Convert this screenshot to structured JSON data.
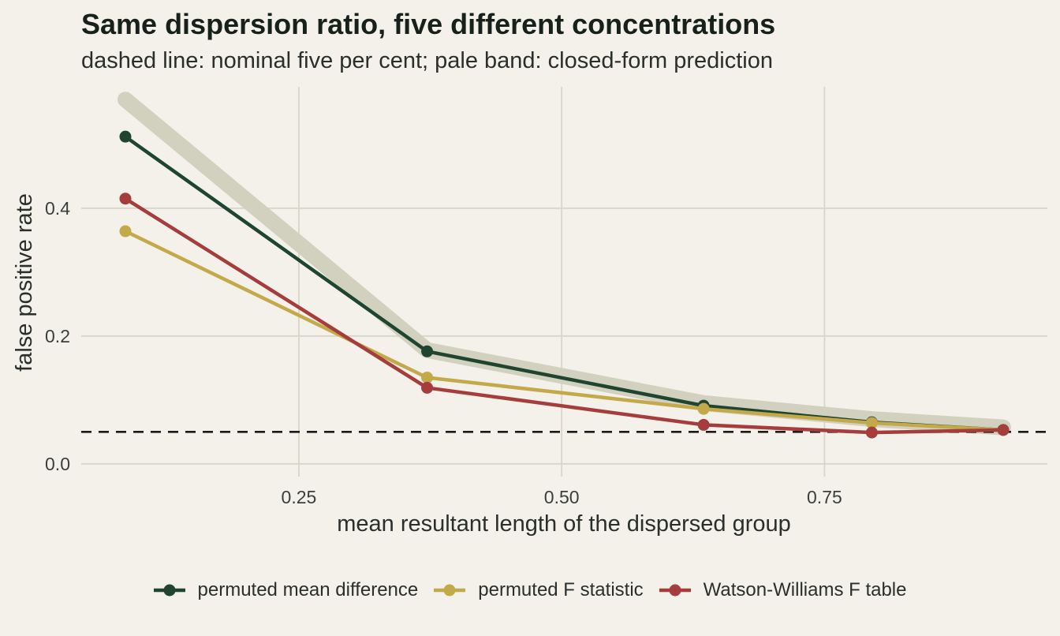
{
  "chart_data": {
    "type": "line",
    "title": "Same dispersion ratio, five different concentrations",
    "subtitle": "dashed line: nominal five per cent; pale band: closed-form prediction",
    "xlabel": "mean resultant length of the dispersed group",
    "ylabel": "false positive rate",
    "xlim": [
      0.043,
      0.962
    ],
    "ylim": [
      -0.02,
      0.59
    ],
    "x_ticks": [
      {
        "value": 0.25,
        "label": "0.25"
      },
      {
        "value": 0.5,
        "label": "0.50"
      },
      {
        "value": 0.75,
        "label": "0.75"
      }
    ],
    "y_ticks": [
      {
        "value": 0.0,
        "label": "0.0"
      },
      {
        "value": 0.2,
        "label": "0.2"
      },
      {
        "value": 0.4,
        "label": "0.4"
      }
    ],
    "grid": true,
    "legend_position": "bottom",
    "reference_line": {
      "y": 0.05,
      "style": "dashed",
      "color": "#1a1a1a"
    },
    "prediction_band": {
      "x": [
        0.085,
        0.372,
        0.635,
        0.795,
        0.92
      ],
      "y": [
        0.57,
        0.178,
        0.095,
        0.07,
        0.057
      ],
      "color": "#d2d1bf"
    },
    "series": [
      {
        "name": "permuted mean difference",
        "color": "#1f4530",
        "x": [
          0.085,
          0.372,
          0.635,
          0.795,
          0.92
        ],
        "y": [
          0.512,
          0.176,
          0.091,
          0.065,
          0.053
        ]
      },
      {
        "name": "permuted F statistic",
        "color": "#c4a94a",
        "x": [
          0.085,
          0.372,
          0.635,
          0.795,
          0.92
        ],
        "y": [
          0.364,
          0.135,
          0.086,
          0.064,
          0.053
        ]
      },
      {
        "name": "Watson-Williams F table",
        "color": "#a63d3d",
        "x": [
          0.085,
          0.372,
          0.635,
          0.795,
          0.92
        ],
        "y": [
          0.415,
          0.119,
          0.061,
          0.049,
          0.053
        ]
      }
    ]
  }
}
